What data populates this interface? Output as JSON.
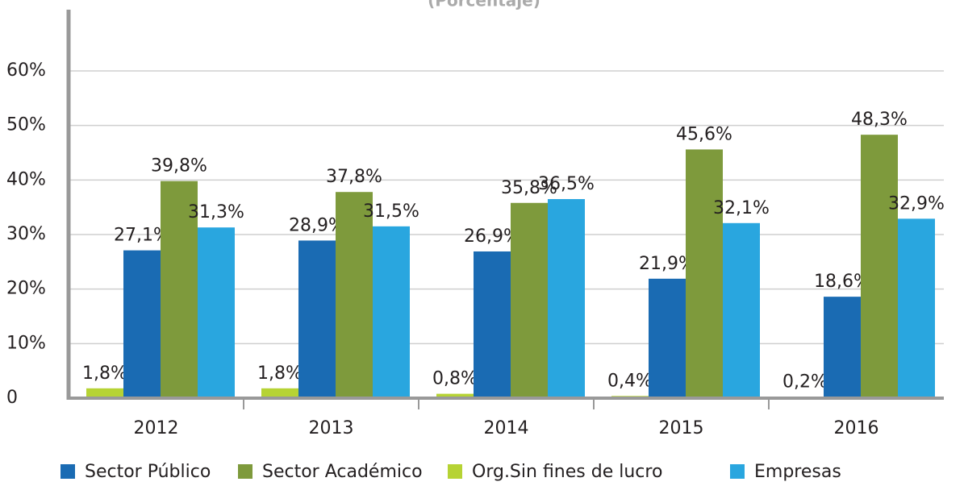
{
  "chart_data": {
    "type": "bar",
    "subtitle": "(Porcentaje)",
    "categories": [
      "2012",
      "2013",
      "2014",
      "2015",
      "2016"
    ],
    "series": [
      {
        "name": "Sector Público",
        "color": "#1a6bb3",
        "values": [
          27.1,
          28.9,
          26.9,
          21.9,
          18.6
        ],
        "value_labels": [
          "27,1%",
          "28,9%",
          "26,9%",
          "21,9%",
          "18,6%"
        ]
      },
      {
        "name": "Sector Académico",
        "color": "#7e9a3c",
        "values": [
          39.8,
          37.8,
          35.8,
          45.6,
          48.3
        ],
        "value_labels": [
          "39,8%",
          "37,8%",
          "35,8%",
          "45,6%",
          "48,3%"
        ]
      },
      {
        "name": "Org.Sin fines de lucro",
        "color": "#b6d334",
        "values": [
          1.8,
          1.8,
          0.8,
          0.4,
          0.2
        ],
        "value_labels": [
          "1,8%",
          "1,8%",
          "0,8%",
          "0,4%",
          "0,2%"
        ]
      },
      {
        "name": "Empresas",
        "color": "#29a6df",
        "values": [
          31.3,
          31.5,
          36.5,
          32.1,
          32.9
        ],
        "value_labels": [
          "31,3%",
          "31,5%",
          "36,5%",
          "32,1%",
          "32,9%"
        ]
      }
    ],
    "ylim": [
      0,
      60
    ],
    "yticks": [
      0,
      {
        "value": 10,
        "label": "10%"
      },
      {
        "value": 20,
        "label": "20%"
      },
      {
        "value": 30,
        "label": "30%"
      },
      {
        "value": 40,
        "label": "40%"
      },
      {
        "value": 50,
        "label": "50%"
      },
      {
        "value": 60,
        "label": "60%"
      }
    ],
    "grid": true,
    "legend": "bottom"
  }
}
